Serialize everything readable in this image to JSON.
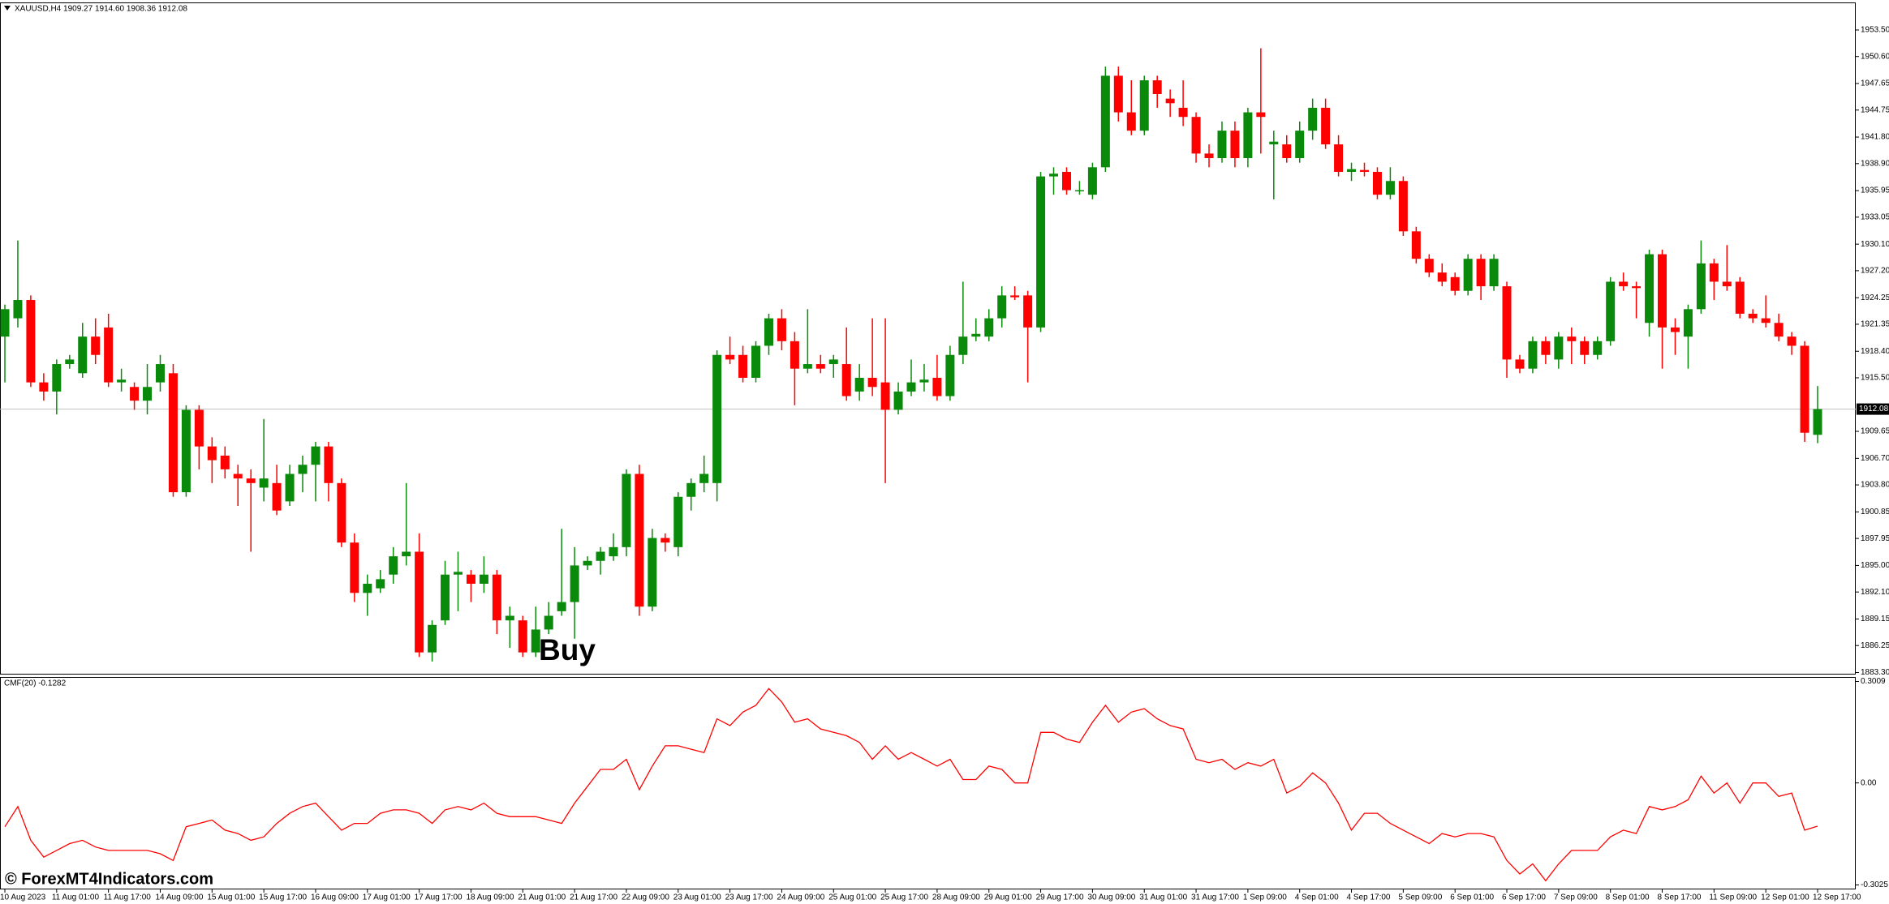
{
  "chart_data": {
    "type": "candlestick",
    "title": "XAUUSD,H4  1909.27 1914.60 1908.36 1912.08",
    "categories": [
      "10 Aug 2023",
      null,
      null,
      null,
      "11 Aug 01:00",
      null,
      null,
      null,
      "11 Aug 17:00",
      null,
      null,
      null,
      "14 Aug 09:00",
      null,
      null,
      null,
      "15 Aug 01:00",
      null,
      null,
      null,
      "15 Aug 17:00",
      null,
      null,
      null,
      "16 Aug 09:00",
      null,
      null,
      null,
      "17 Aug 01:00",
      null,
      null,
      null,
      "17 Aug 17:00",
      null,
      null,
      null,
      "18 Aug 09:00",
      null,
      null,
      null,
      "21 Aug 01:00",
      null,
      null,
      null,
      "21 Aug 17:00",
      null,
      null,
      null,
      "22 Aug 09:00",
      null,
      null,
      null,
      "23 Aug 01:00",
      null,
      null,
      null,
      "23 Aug 17:00",
      null,
      null,
      null,
      "24 Aug 09:00",
      null,
      null,
      null,
      "25 Aug 01:00",
      null,
      null,
      null,
      "25 Aug 17:00",
      null,
      null,
      null,
      "28 Aug 09:00",
      null,
      null,
      null,
      "29 Aug 01:00",
      null,
      null,
      null,
      "29 Aug 17:00",
      null,
      null,
      null,
      "30 Aug 09:00",
      null,
      null,
      null,
      "31 Aug 01:00",
      null,
      null,
      null,
      "31 Aug 17:00",
      null,
      null,
      null,
      "1 Sep 09:00",
      null,
      null,
      null,
      "4 Sep 01:00",
      null,
      null,
      null,
      "4 Sep 17:00",
      null,
      null,
      null,
      "5 Sep 09:00",
      null,
      null,
      null,
      "6 Sep 01:00",
      null,
      null,
      null,
      "6 Sep 17:00",
      null,
      null,
      null,
      "7 Sep 09:00",
      null,
      null,
      null,
      "8 Sep 01:00",
      null,
      null,
      null,
      "8 Sep 17:00",
      null,
      null,
      null,
      "11 Sep 09:00",
      null,
      null,
      null,
      "12 Sep 01:00",
      null,
      null,
      null,
      "12 Sep 17:00"
    ],
    "ohlc": [
      [
        1920,
        1923.5,
        1915,
        1923
      ],
      [
        1922,
        1930.5,
        1921,
        1924
      ],
      [
        1924,
        1924.5,
        1914.5,
        1915
      ],
      [
        1915,
        1916,
        1913,
        1914
      ],
      [
        1914,
        1917.5,
        1911.5,
        1917
      ],
      [
        1917,
        1918,
        1916.5,
        1917.5
      ],
      [
        1916,
        1921.5,
        1915.5,
        1920
      ],
      [
        1920,
        1922,
        1917,
        1918
      ],
      [
        1921,
        1922.5,
        1914.5,
        1915
      ],
      [
        1915,
        1916.5,
        1914,
        1915.3
      ],
      [
        1914.5,
        1915,
        1912,
        1913
      ],
      [
        1913,
        1917,
        1911.5,
        1914.5
      ],
      [
        1915,
        1918,
        1914,
        1917
      ],
      [
        1916,
        1917,
        1902.5,
        1903
      ],
      [
        1903,
        1912.5,
        1902.5,
        1912
      ],
      [
        1912,
        1912.5,
        1905.5,
        1908
      ],
      [
        1908,
        1909,
        1904,
        1906.5
      ],
      [
        1907,
        1908,
        1904.5,
        1905.5
      ],
      [
        1905,
        1906,
        1901.5,
        1904.5
      ],
      [
        1904.5,
        1905.5,
        1896.5,
        1904
      ],
      [
        1903.5,
        1911,
        1902,
        1904.5
      ],
      [
        1904,
        1906,
        1900.5,
        1901
      ],
      [
        1902,
        1906,
        1901.5,
        1905
      ],
      [
        1905,
        1907,
        1903,
        1906
      ],
      [
        1906,
        1908.5,
        1902,
        1908
      ],
      [
        1908,
        1908.5,
        1902,
        1904
      ],
      [
        1904,
        1904.5,
        1897,
        1897.5
      ],
      [
        1897.5,
        1898.5,
        1891,
        1892
      ],
      [
        1892,
        1894,
        1889.5,
        1893
      ],
      [
        1892.5,
        1894.5,
        1892,
        1893.5
      ],
      [
        1894,
        1897,
        1893,
        1896
      ],
      [
        1896,
        1904,
        1895,
        1896.5
      ],
      [
        1896.5,
        1898.5,
        1885,
        1885.5
      ],
      [
        1885.5,
        1889,
        1884.5,
        1888.5
      ],
      [
        1889,
        1895.5,
        1888.5,
        1894
      ],
      [
        1894,
        1896.5,
        1890,
        1894.3
      ],
      [
        1894,
        1894.5,
        1891,
        1893
      ],
      [
        1893,
        1896,
        1892,
        1894
      ],
      [
        1894,
        1894.5,
        1887.5,
        1889
      ],
      [
        1889,
        1890.5,
        1886,
        1889.5
      ],
      [
        1889,
        1889.5,
        1885,
        1885.5
      ],
      [
        1885.5,
        1890.5,
        1885,
        1888
      ],
      [
        1888,
        1891,
        1887.5,
        1889.5
      ],
      [
        1890,
        1899,
        1889.5,
        1891
      ],
      [
        1891,
        1897,
        1887,
        1895
      ],
      [
        1895,
        1896,
        1894.5,
        1895.5
      ],
      [
        1895.5,
        1897,
        1894,
        1896.5
      ],
      [
        1896,
        1898.5,
        1895.5,
        1897
      ],
      [
        1897,
        1905.5,
        1896,
        1905
      ],
      [
        1905,
        1906,
        1889.5,
        1890.5
      ],
      [
        1890.5,
        1899,
        1890,
        1898
      ],
      [
        1898,
        1898.5,
        1896.5,
        1897.5
      ],
      [
        1897,
        1903,
        1896,
        1902.5
      ],
      [
        1902.5,
        1904.5,
        1901,
        1904
      ],
      [
        1904,
        1907,
        1903,
        1905
      ],
      [
        1904,
        1918.5,
        1902,
        1918
      ],
      [
        1918,
        1920,
        1917,
        1917.5
      ],
      [
        1918,
        1919,
        1915,
        1915.5
      ],
      [
        1915.5,
        1919.5,
        1915,
        1919
      ],
      [
        1919,
        1922.5,
        1918,
        1922
      ],
      [
        1922,
        1923,
        1918.5,
        1919.5
      ],
      [
        1919.5,
        1920.5,
        1912.5,
        1916.5
      ],
      [
        1916.5,
        1923,
        1916,
        1917
      ],
      [
        1917,
        1918,
        1916,
        1916.5
      ],
      [
        1917,
        1918,
        1915.5,
        1917.5
      ],
      [
        1917,
        1921,
        1913,
        1913.5
      ],
      [
        1914,
        1917,
        1913,
        1915.5
      ],
      [
        1915.5,
        1922,
        1913.5,
        1914.5
      ],
      [
        1915,
        1922,
        1904,
        1912
      ],
      [
        1912,
        1915,
        1911.5,
        1914
      ],
      [
        1914,
        1917.5,
        1913.5,
        1915
      ],
      [
        1915,
        1917,
        1914,
        1915.3
      ],
      [
        1915.5,
        1918,
        1913,
        1913.5
      ],
      [
        1913.5,
        1919,
        1913,
        1918
      ],
      [
        1918,
        1926,
        1917,
        1920
      ],
      [
        1920,
        1922,
        1919.5,
        1920.3
      ],
      [
        1920,
        1923,
        1919.5,
        1922
      ],
      [
        1922,
        1925.5,
        1921,
        1924.5
      ],
      [
        1924.5,
        1925.5,
        1924,
        1924.3
      ],
      [
        1924.5,
        1925,
        1915,
        1921
      ],
      [
        1921,
        1938,
        1920.5,
        1937.5
      ],
      [
        1937.5,
        1938.5,
        1935.5,
        1937.8
      ],
      [
        1938,
        1938.5,
        1935.5,
        1936
      ],
      [
        1936,
        1937,
        1935.5,
        1936
      ],
      [
        1935.5,
        1939,
        1935,
        1938.5
      ],
      [
        1938.5,
        1949.5,
        1938,
        1948.5
      ],
      [
        1948.5,
        1949.5,
        1943.5,
        1944.5
      ],
      [
        1944.5,
        1948,
        1942,
        1942.5
      ],
      [
        1942.5,
        1948.5,
        1942,
        1948
      ],
      [
        1948,
        1948.5,
        1945,
        1946.5
      ],
      [
        1946,
        1947,
        1944,
        1945.5
      ],
      [
        1945,
        1948,
        1943,
        1944
      ],
      [
        1944,
        1944.5,
        1939,
        1940
      ],
      [
        1940,
        1941,
        1938.5,
        1939.5
      ],
      [
        1939.5,
        1943.5,
        1939,
        1942.5
      ],
      [
        1942.5,
        1943.5,
        1938.5,
        1939.5
      ],
      [
        1939.5,
        1945,
        1938.5,
        1944.5
      ],
      [
        1944.5,
        1951.5,
        1940,
        1944
      ],
      [
        1941,
        1942.5,
        1935,
        1941.3
      ],
      [
        1941,
        1942,
        1939,
        1939.5
      ],
      [
        1939.5,
        1943.5,
        1939,
        1942.5
      ],
      [
        1942.5,
        1946,
        1941.5,
        1945
      ],
      [
        1945,
        1946,
        1940.5,
        1941
      ],
      [
        1941,
        1942,
        1937.5,
        1938
      ],
      [
        1938,
        1939,
        1937,
        1938.3
      ],
      [
        1938.2,
        1939,
        1937.5,
        1938
      ],
      [
        1938,
        1938.5,
        1935,
        1935.5
      ],
      [
        1935.5,
        1938.5,
        1935,
        1937
      ],
      [
        1937,
        1937.5,
        1931,
        1931.5
      ],
      [
        1931.5,
        1932,
        1928,
        1928.5
      ],
      [
        1928.5,
        1929,
        1926.5,
        1927
      ],
      [
        1927,
        1928,
        1925.5,
        1926
      ],
      [
        1926.5,
        1927,
        1924.5,
        1925
      ],
      [
        1925,
        1929,
        1924.5,
        1928.5
      ],
      [
        1928.5,
        1929,
        1924,
        1925.5
      ],
      [
        1925.5,
        1929,
        1925,
        1928.5
      ],
      [
        1925.5,
        1926,
        1915.5,
        1917.5
      ],
      [
        1917.5,
        1918,
        1916,
        1916.5
      ],
      [
        1916.5,
        1920,
        1916,
        1919.5
      ],
      [
        1919.5,
        1920,
        1917,
        1918
      ],
      [
        1917.5,
        1920.5,
        1916.5,
        1920
      ],
      [
        1920,
        1921,
        1917,
        1919.5
      ],
      [
        1919.5,
        1920,
        1917,
        1918
      ],
      [
        1918,
        1920,
        1917.5,
        1919.5
      ],
      [
        1919.5,
        1926.5,
        1919,
        1926
      ],
      [
        1926,
        1927,
        1925,
        1925.5
      ],
      [
        1925.5,
        1926,
        1922,
        1925.3
      ],
      [
        1921.5,
        1929.5,
        1920,
        1929
      ],
      [
        1929,
        1929.5,
        1916.5,
        1921
      ],
      [
        1921,
        1922,
        1918,
        1920.5
      ],
      [
        1920,
        1923.5,
        1916.5,
        1923
      ],
      [
        1923,
        1930.5,
        1922.5,
        1928
      ],
      [
        1928,
        1928.5,
        1924,
        1926
      ],
      [
        1926,
        1930,
        1925,
        1925.5
      ],
      [
        1926,
        1926.5,
        1922,
        1922.5
      ],
      [
        1922.5,
        1923,
        1921.5,
        1922
      ],
      [
        1922,
        1924.5,
        1921,
        1921.5
      ],
      [
        1921.5,
        1922.5,
        1919.5,
        1920
      ],
      [
        1920,
        1920.5,
        1918,
        1919
      ],
      [
        1919,
        1919.5,
        1908.5,
        1909.5
      ],
      [
        1909.27,
        1914.6,
        1908.36,
        1912.08
      ]
    ],
    "up_color": "#0a8a0a",
    "down_color": "#ff0000",
    "ylim": [
      1883.08,
      1956.42
    ],
    "yticks": [
      {
        "value": 1953.5,
        "label": "1953.50"
      },
      {
        "value": 1950.6,
        "label": "1950.60"
      },
      1947.65,
      1944.75,
      {
        "value": 1941.8,
        "label": "1941.80"
      },
      {
        "value": 1938.9,
        "label": "1938.90"
      },
      1935.95,
      1933.05,
      {
        "value": 1930.1,
        "label": "1930.10"
      },
      {
        "value": 1927.2,
        "label": "1927.20"
      },
      1924.25,
      1921.35,
      {
        "value": 1918.4,
        "label": "1918.40"
      },
      {
        "value": 1915.5,
        "label": "1915.50"
      },
      1909.65,
      {
        "value": 1906.7,
        "label": "1906.70"
      },
      {
        "value": 1903.8,
        "label": "1903.80"
      },
      1900.85,
      1897.95,
      {
        "value": 1895,
        "label": "1895.00"
      },
      {
        "value": 1892.1,
        "label": "1892.10"
      },
      1889.15,
      1886.25,
      {
        "value": 1883.3,
        "label": "1883.30"
      }
    ],
    "current_price": 1912.08,
    "annotation": "Buy",
    "watermark": "© ForexMT4Indicators.com",
    "indicator": {
      "type": "line",
      "title": "CMF(20) -0.1282",
      "color": "#ff0000",
      "values": [
        -0.13,
        -0.07,
        -0.17,
        -0.22,
        -0.2,
        -0.18,
        -0.17,
        -0.19,
        -0.2,
        -0.2,
        -0.2,
        -0.2,
        -0.21,
        -0.23,
        -0.13,
        -0.12,
        -0.11,
        -0.14,
        -0.15,
        -0.17,
        -0.16,
        -0.12,
        -0.09,
        -0.07,
        -0.06,
        -0.1,
        -0.14,
        -0.12,
        -0.12,
        -0.09,
        -0.08,
        -0.08,
        -0.09,
        -0.12,
        -0.08,
        -0.07,
        -0.08,
        -0.06,
        -0.09,
        -0.1,
        -0.1,
        -0.1,
        -0.11,
        -0.12,
        -0.06,
        -0.01,
        0.04,
        0.04,
        0.07,
        -0.02,
        0.05,
        0.11,
        0.11,
        0.1,
        0.09,
        0.19,
        0.17,
        0.21,
        0.23,
        0.28,
        0.24,
        0.18,
        0.19,
        0.16,
        0.15,
        0.14,
        0.12,
        0.07,
        0.11,
        0.07,
        0.09,
        0.07,
        0.05,
        0.07,
        0.01,
        0.01,
        0.05,
        0.04,
        0,
        0,
        0.15,
        0.15,
        0.13,
        0.12,
        0.18,
        0.23,
        0.18,
        0.21,
        0.22,
        0.19,
        0.17,
        0.16,
        0.07,
        0.06,
        0.07,
        0.04,
        0.06,
        0.05,
        0.07,
        -0.03,
        -0.01,
        0.03,
        0,
        -0.06,
        -0.14,
        -0.09,
        -0.09,
        -0.12,
        -0.14,
        -0.16,
        -0.18,
        -0.15,
        -0.16,
        -0.15,
        -0.15,
        -0.16,
        -0.23,
        -0.27,
        -0.24,
        -0.29,
        -0.24,
        -0.2,
        -0.2,
        -0.2,
        -0.16,
        -0.14,
        -0.15,
        -0.07,
        -0.08,
        -0.07,
        -0.05,
        0.02,
        -0.03,
        0,
        -0.06,
        0,
        0,
        -0.04,
        -0.03,
        -0.14,
        -0.1282
      ],
      "ylim": [
        -0.3157,
        0.3117
      ],
      "yticks": [
        0.3009,
        {
          "value": 0,
          "label": "0.00"
        },
        -0.3025
      ]
    }
  }
}
